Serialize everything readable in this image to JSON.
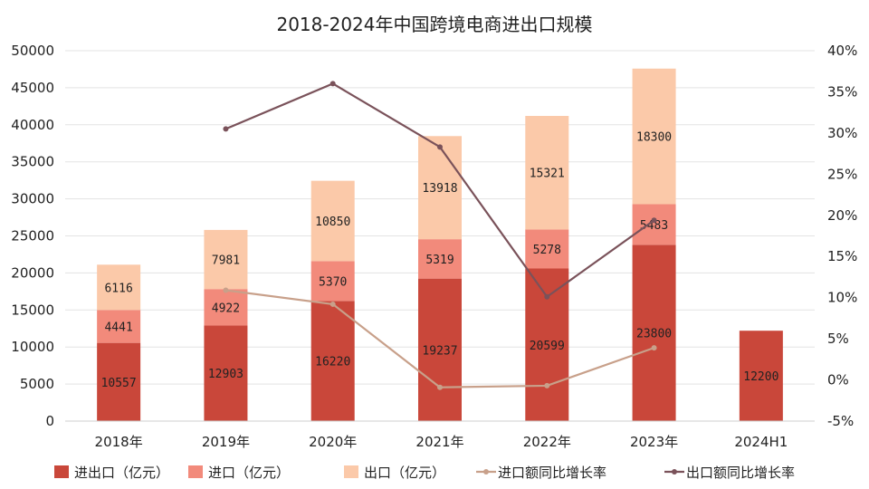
{
  "chart_data": {
    "type": "bar",
    "title": "2018-2024年中国跨境电商进出口规模",
    "categories": [
      "2018年",
      "2019年",
      "2020年",
      "2021年",
      "2022年",
      "2023年",
      "2024H1"
    ],
    "series": [
      {
        "name": "进出口（亿元）",
        "kind": "bar",
        "color": "#c9473a",
        "values": [
          10557,
          12903,
          16220,
          19237,
          20599,
          23800,
          12200
        ],
        "labels": [
          "10557",
          "12903",
          "16220",
          "19237",
          "20599",
          "23800",
          "12200"
        ]
      },
      {
        "name": "进口（亿元）",
        "kind": "bar",
        "color": "#f28a7b",
        "values": [
          4441,
          4922,
          5370,
          5319,
          5278,
          5483,
          null
        ],
        "labels": [
          "4441",
          "4922",
          "5370",
          "5319",
          "5278",
          "5483",
          ""
        ]
      },
      {
        "name": "出口（亿元）",
        "kind": "bar",
        "color": "#fbc9a9",
        "values": [
          6116,
          7981,
          10850,
          13918,
          15321,
          18300,
          null
        ],
        "labels": [
          "6116",
          "7981",
          "10850",
          "13918",
          "15321",
          "18300",
          ""
        ]
      },
      {
        "name": "进口额同比增长率",
        "kind": "line",
        "axis": "right",
        "color": "#c8a08a",
        "values": [
          null,
          10.9,
          9.2,
          -0.9,
          -0.7,
          3.9,
          null
        ]
      },
      {
        "name": "出口额同比增长率",
        "kind": "line",
        "axis": "right",
        "color": "#7a525a",
        "values": [
          null,
          30.5,
          36.0,
          28.3,
          10.1,
          19.4,
          null
        ]
      }
    ],
    "y_left": {
      "min": 0,
      "max": 50000,
      "step": 5000,
      "ticks": [
        "0",
        "5000",
        "10000",
        "15000",
        "20000",
        "25000",
        "30000",
        "35000",
        "40000",
        "45000",
        "50000"
      ]
    },
    "y_right": {
      "min": -5,
      "max": 40,
      "step": 5,
      "ticks": [
        "-5%",
        "0%",
        "5%",
        "10%",
        "15%",
        "20%",
        "25%",
        "30%",
        "35%",
        "40%"
      ]
    },
    "grid": true,
    "legend_position": "bottom"
  }
}
